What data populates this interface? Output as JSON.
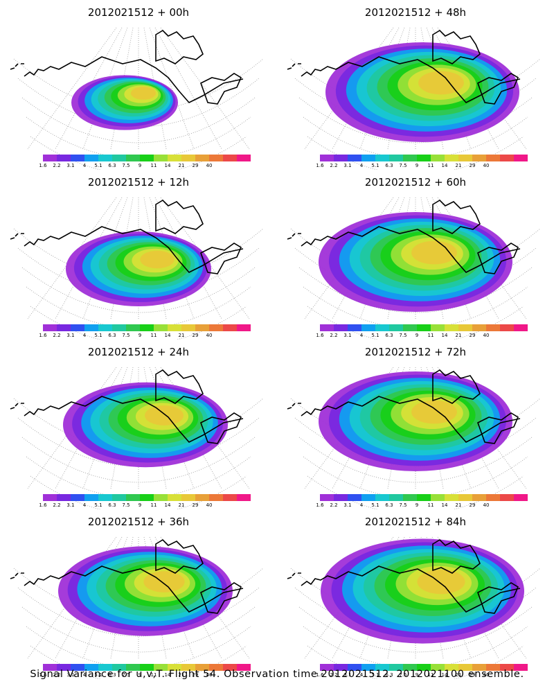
{
  "panels": [
    {
      "title": "2012021512 + 00h"
    },
    {
      "title": "2012021512 + 48h"
    },
    {
      "title": "2012021512 + 12h"
    },
    {
      "title": "2012021512 + 60h"
    },
    {
      "title": "2012021512 + 24h"
    },
    {
      "title": "2012021512 + 72h"
    },
    {
      "title": "2012021512 + 36h"
    },
    {
      "title": "2012021512 + 84h"
    }
  ],
  "colorbar": {
    "colors": [
      "#a030d8",
      "#7828e0",
      "#3050f0",
      "#10a0f0",
      "#18c8d0",
      "#20c8a0",
      "#30c850",
      "#18d018",
      "#98e038",
      "#d8e038",
      "#e8c838",
      "#e8a038",
      "#ec7838",
      "#ec4848",
      "#f01888"
    ],
    "labels": [
      "1.6",
      "2.2",
      "3.1",
      "4",
      "5.1",
      "6.3",
      "7.5",
      "9",
      "11",
      "14",
      "21",
      "29",
      "40"
    ]
  },
  "caption": "Signal Variance for u,v,T. Flight 54. Observation time 2012021512. 2012021100 ensemble."
}
